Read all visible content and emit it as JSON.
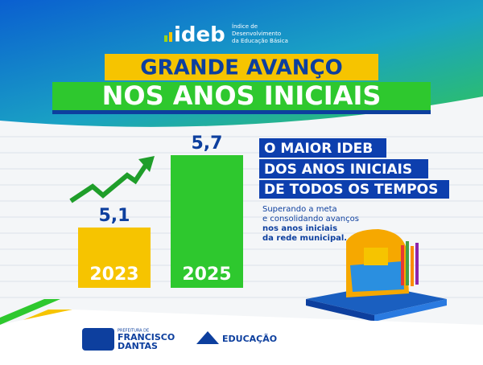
{
  "header": {
    "logo": "ideb",
    "logo_subtitle": [
      "Índice de",
      "Desenvolvimento",
      "da Educação Básica"
    ],
    "line1": "GRANDE AVANÇO",
    "line2": "NOS ANOS INICIAIS"
  },
  "chart_data": {
    "type": "bar",
    "categories": [
      "2023",
      "2025"
    ],
    "values": [
      5.1,
      5.7
    ],
    "value_labels": [
      "5,1",
      "5,7"
    ],
    "colors": [
      "#f6c400",
      "#2ec82e"
    ],
    "ylim": [
      4.6,
      5.8
    ]
  },
  "callout": {
    "headline": [
      "O MAIOR IDEB",
      "DOS ANOS INICIAIS",
      "DE TODOS OS TEMPOS"
    ],
    "text": [
      "Superando a meta",
      "e consolidando avanços",
      "nos anos iniciais",
      "da rede municipal."
    ]
  },
  "footer": {
    "city_prefix": "PREFEITURA DE",
    "city": [
      "FRANCISCO",
      "DANTAS"
    ],
    "department": "EDUCAÇÃO"
  }
}
